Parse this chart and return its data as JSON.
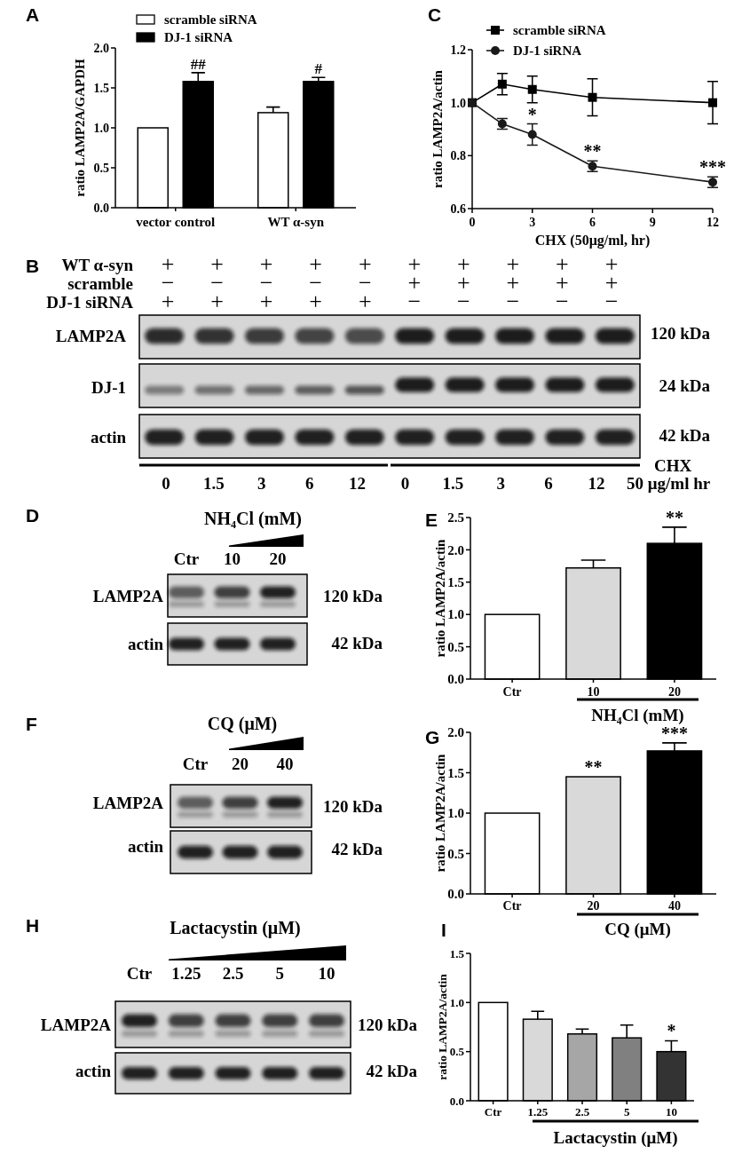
{
  "chart_data": [
    {
      "type": "bar",
      "title": "A",
      "categories": [
        "vector control",
        "WT α-syn"
      ],
      "series": [
        {
          "name": "scramble siRNA",
          "color": "#ffffff",
          "values": [
            1.0,
            1.19
          ],
          "errors": [
            null,
            0.07
          ]
        },
        {
          "name": "DJ-1 siRNA",
          "color": "#000000",
          "values": [
            1.58,
            1.58
          ],
          "errors": [
            0.11,
            0.05
          ]
        }
      ],
      "ylabel": "ratio LAMP2A/GAPDH",
      "ylim": [
        0,
        2
      ],
      "yticks": [
        {
          "value": 0,
          "label": "0.0"
        },
        0.5,
        {
          "value": 1,
          "label": "1.0"
        },
        1.5,
        {
          "value": 2,
          "label": "2.0"
        }
      ],
      "legend": "top",
      "annotations": [
        "##",
        "#"
      ]
    },
    {
      "type": "line",
      "title": "C",
      "x": [
        0,
        1.5,
        3,
        6,
        12
      ],
      "series": [
        {
          "name": "scramble siRNA",
          "color": "#000000",
          "marker": "square",
          "values": [
            1.0,
            1.07,
            1.05,
            1.02,
            1.0
          ],
          "errors": [
            null,
            0.04,
            0.05,
            0.07,
            0.08
          ]
        },
        {
          "name": "DJ-1 siRNA",
          "color": "#1a1a1a",
          "marker": "circle",
          "values": [
            1.0,
            0.92,
            0.88,
            0.76,
            0.7
          ],
          "errors": [
            null,
            0.02,
            0.04,
            0.02,
            0.02
          ]
        }
      ],
      "xlabel": "CHX (50μg/ml, hr)",
      "ylabel": "ratio LAMP2A/actin",
      "xlim": [
        0,
        12
      ],
      "xticks": [
        0,
        3,
        6,
        9,
        12
      ],
      "ylim": [
        0.6,
        1.2
      ],
      "yticks": [
        0.6,
        0.8,
        {
          "value": 1,
          "label": "1.0"
        },
        1.2
      ],
      "legend": "top left",
      "annotations": [
        {
          "text": "*",
          "x": 3,
          "y": 0.92
        },
        {
          "text": "**",
          "x": 6,
          "y": 0.78
        },
        {
          "text": "***",
          "x": 12,
          "y": 0.72
        }
      ]
    },
    {
      "type": "other",
      "title": "B",
      "annotations": [
        "WT α-syn",
        "scramble",
        "DJ-1 siRNA",
        "+",
        "+",
        "+",
        "+",
        "+",
        "+",
        "+",
        "+",
        "+",
        "+",
        "−",
        "−",
        "−",
        "−",
        "−",
        "+",
        "+",
        "+",
        "+",
        "+",
        "+",
        "+",
        "+",
        "+",
        "+",
        "−",
        "−",
        "−",
        "−",
        "−",
        "LAMP2A",
        "DJ-1",
        "actin",
        "120 kDa",
        "24 kDa",
        "42 kDa",
        "CHX",
        "0",
        "1.5",
        "3",
        "6",
        "12",
        "0",
        "1.5",
        "3",
        "6",
        "12",
        "50 μg/ml hr"
      ]
    },
    {
      "type": "other",
      "title": "D",
      "annotations": [
        "NH₄Cl (mM)",
        "Ctr",
        "10",
        "20",
        "LAMP2A",
        "actin",
        "120 kDa",
        "42 kDa"
      ]
    },
    {
      "type": "bar",
      "title": "E",
      "categories": [
        "Ctr",
        "10",
        "20"
      ],
      "values": [
        1.0,
        1.72,
        2.1
      ],
      "colors": [
        "#ffffff",
        "#d9d9d9",
        "#000000"
      ],
      "errors": [
        null,
        0.12,
        0.25
      ],
      "xlabel": "NH₄Cl (mM)",
      "ylabel": "ratio LAMP2A/actin",
      "ylim": [
        0,
        2.5
      ],
      "yticks": [
        {
          "value": 0,
          "label": "0.0"
        },
        0.5,
        {
          "value": 1,
          "label": "1.0"
        },
        1.5,
        {
          "value": 2,
          "label": "2.0"
        },
        2.5
      ],
      "annotations": [
        {
          "text": "**",
          "x": "20",
          "y": 2.35
        }
      ]
    },
    {
      "type": "other",
      "title": "F",
      "annotations": [
        "CQ (μM)",
        "Ctr",
        "20",
        "40",
        "LAMP2A",
        "actin",
        "120 kDa",
        "42 kDa"
      ]
    },
    {
      "type": "bar",
      "title": "G",
      "categories": [
        "Ctr",
        "20",
        "40"
      ],
      "values": [
        1.0,
        1.45,
        1.77
      ],
      "colors": [
        "#ffffff",
        "#d9d9d9",
        "#000000"
      ],
      "errors": [
        null,
        null,
        0.1
      ],
      "xlabel": "CQ (μM)",
      "ylabel": "ratio LAMP2A/actin",
      "ylim": [
        0,
        2
      ],
      "yticks": [
        {
          "value": 0,
          "label": "0.0"
        },
        0.5,
        {
          "value": 1,
          "label": "1.0"
        },
        1.5,
        {
          "value": 2,
          "label": "2.0"
        }
      ],
      "annotations": [
        {
          "text": "**",
          "x": "20",
          "y": 1.45
        },
        {
          "text": "***",
          "x": "40",
          "y": 1.87
        }
      ]
    },
    {
      "type": "other",
      "title": "H",
      "annotations": [
        "Lactacystin (μM)",
        "Ctr",
        "1.25",
        "2.5",
        "5",
        "10",
        "LAMP2A",
        "actin",
        "120 kDa",
        "42 kDa"
      ]
    },
    {
      "type": "bar",
      "title": "I",
      "categories": [
        "Ctr",
        "1.25",
        "2.5",
        "5",
        "10"
      ],
      "values": [
        1.0,
        0.83,
        0.68,
        0.64,
        0.5
      ],
      "colors": [
        "#ffffff",
        "#d9d9d9",
        "#a6a6a6",
        "#808080",
        "#333333"
      ],
      "errors": [
        null,
        0.08,
        0.05,
        0.13,
        0.11
      ],
      "xlabel": "Lactacystin (μM)",
      "ylabel": "ratio LAMP2A/actin",
      "ylim": [
        0,
        1.5
      ],
      "yticks": [
        {
          "value": 0,
          "label": "0.0"
        },
        0.5,
        {
          "value": 1,
          "label": "1.0"
        },
        1.5
      ],
      "annotations": [
        {
          "text": "*",
          "x": "10",
          "y": 0.61
        }
      ]
    }
  ]
}
